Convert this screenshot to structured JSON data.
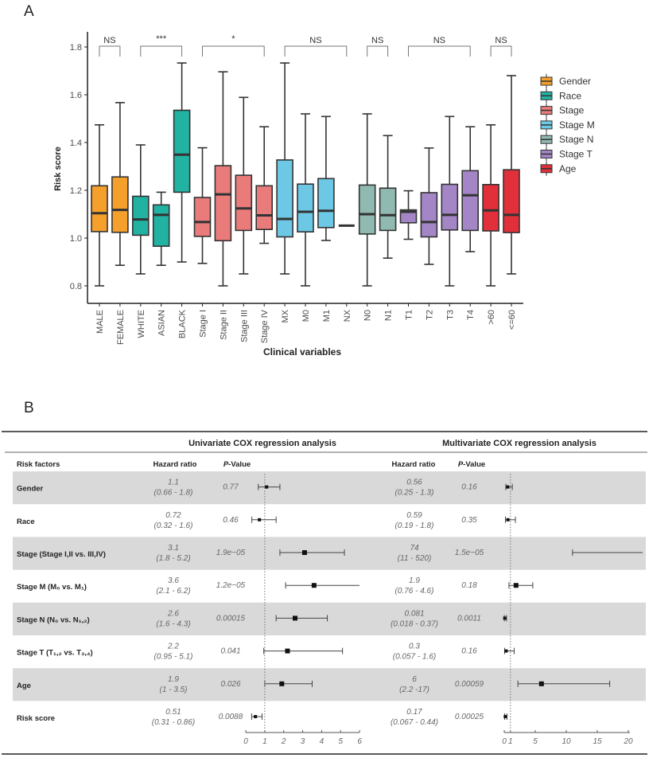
{
  "panel_a_label": "A",
  "panel_b_label": "B",
  "colors": {
    "Gender": "#F5A02C",
    "Race": "#22B2A2",
    "Stage": "#E97B7B",
    "Stage M": "#6DC8E6",
    "Stage N": "#90BAB1",
    "Stage T": "#A486C6",
    "Age": "#E2303B"
  },
  "chart_data": [
    {
      "type": "box",
      "title": "",
      "xlabel": "Clinical variables",
      "ylabel": "Risk score",
      "ylim": [
        0.73,
        1.83
      ],
      "yticks": [
        "0.8",
        "1.0",
        "1.2",
        "1.4",
        "1.6",
        "1.8"
      ],
      "legend": {
        "placement": "right",
        "entries": [
          "Gender",
          "Race",
          "Stage",
          "Stage M",
          "Stage N",
          "Stage T",
          "Age"
        ]
      },
      "boxes": [
        {
          "category": "MALE",
          "group": "Gender",
          "min": 0.8,
          "q1": 1.027,
          "median": 1.104,
          "q3": 1.219,
          "max": 1.474
        },
        {
          "category": "FEMALE",
          "group": "Gender",
          "min": 0.886,
          "q1": 1.024,
          "median": 1.118,
          "q3": 1.256,
          "max": 1.567
        },
        {
          "category": "WHITE",
          "group": "Race",
          "min": 0.85,
          "q1": 1.012,
          "median": 1.078,
          "q3": 1.175,
          "max": 1.39
        },
        {
          "category": "ASIAN",
          "group": "Race",
          "min": 0.886,
          "q1": 0.966,
          "median": 1.097,
          "q3": 1.139,
          "max": 1.192
        },
        {
          "category": "BLACK",
          "group": "Race",
          "min": 0.9,
          "q1": 1.192,
          "median": 1.349,
          "q3": 1.535,
          "max": 1.733
        },
        {
          "category": "Stage I",
          "group": "Stage",
          "min": 0.894,
          "q1": 1.007,
          "median": 1.067,
          "q3": 1.17,
          "max": 1.378
        },
        {
          "category": "Stage II",
          "group": "Stage",
          "min": 0.8,
          "q1": 0.989,
          "median": 1.183,
          "q3": 1.303,
          "max": 1.696
        },
        {
          "category": "Stage III",
          "group": "Stage",
          "min": 0.85,
          "q1": 1.032,
          "median": 1.124,
          "q3": 1.263,
          "max": 1.589
        },
        {
          "category": "Stage IV",
          "group": "Stage",
          "min": 0.978,
          "q1": 1.036,
          "median": 1.095,
          "q3": 1.219,
          "max": 1.466
        },
        {
          "category": "MX",
          "group": "Stage M",
          "min": 0.85,
          "q1": 1.005,
          "median": 1.08,
          "q3": 1.327,
          "max": 1.733
        },
        {
          "category": "M0",
          "group": "Stage M",
          "min": 0.8,
          "q1": 1.026,
          "median": 1.11,
          "q3": 1.226,
          "max": 1.52
        },
        {
          "category": "M1",
          "group": "Stage M",
          "min": 0.99,
          "q1": 1.044,
          "median": 1.114,
          "q3": 1.249,
          "max": 1.509
        },
        {
          "category": "NX",
          "group": "Stage M",
          "min": 1.052,
          "q1": 1.052,
          "median": 1.052,
          "q3": 1.052,
          "max": 1.052
        },
        {
          "category": "N0",
          "group": "Stage N",
          "min": 0.8,
          "q1": 1.017,
          "median": 1.1,
          "q3": 1.222,
          "max": 1.52
        },
        {
          "category": "N1",
          "group": "Stage N",
          "min": 0.916,
          "q1": 1.032,
          "median": 1.096,
          "q3": 1.209,
          "max": 1.429
        },
        {
          "category": "T1",
          "group": "Stage T",
          "min": 0.995,
          "q1": 1.064,
          "median": 1.11,
          "q3": 1.118,
          "max": 1.198
        },
        {
          "category": "T2",
          "group": "Stage T",
          "min": 0.89,
          "q1": 1.005,
          "median": 1.067,
          "q3": 1.19,
          "max": 1.377
        },
        {
          "category": "T3",
          "group": "Stage T",
          "min": 0.8,
          "q1": 1.034,
          "median": 1.097,
          "q3": 1.225,
          "max": 1.509
        },
        {
          "category": "T4",
          "group": "Stage T",
          "min": 0.943,
          "q1": 1.032,
          "median": 1.179,
          "q3": 1.282,
          "max": 1.466
        },
        {
          "category": ">60",
          "group": "Age",
          "min": 0.8,
          "q1": 1.03,
          "median": 1.116,
          "q3": 1.224,
          "max": 1.474
        },
        {
          "category": "<=60",
          "group": "Age",
          "min": 0.85,
          "q1": 1.023,
          "median": 1.097,
          "q3": 1.286,
          "max": 1.68
        }
      ],
      "annotations": [
        {
          "from": "MALE",
          "to": "FEMALE",
          "text": "NS"
        },
        {
          "from": "WHITE",
          "to": "BLACK",
          "text": "***"
        },
        {
          "from": "Stage I",
          "to": "Stage IV",
          "text": "*"
        },
        {
          "from": "MX",
          "to": "NX",
          "text": "NS"
        },
        {
          "from": "N0",
          "to": "N1",
          "text": "NS"
        },
        {
          "from": "T1",
          "to": "T4",
          "text": "NS"
        },
        {
          "from": ">60",
          "to": "<=60",
          "text": "NS"
        }
      ]
    },
    {
      "type": "forest",
      "uni_title": "Univariate COX regression analysis",
      "multi_title": "Multivariate  COX regression analysis",
      "col_headers": {
        "factor": "Risk factors",
        "hr": "Hazard ratio",
        "p_italic": "P",
        "p_rest": "-Value"
      },
      "uni_axis": {
        "range": [
          0,
          6
        ],
        "ticks": [
          "0",
          "1",
          "2",
          "3",
          "4",
          "5",
          "6"
        ],
        "ref": 1
      },
      "multi_axis": {
        "range": [
          0,
          20
        ],
        "ticks": [
          "0",
          "1",
          "5",
          "10",
          "15",
          "20"
        ],
        "ref": 1
      },
      "rows": [
        {
          "factor": "Gender",
          "uni": {
            "hr": "1.1",
            "ci": "(0.66 - 1.8)",
            "p": "0.77",
            "est": 1.1,
            "lo": 0.66,
            "hi": 1.8
          },
          "multi": {
            "hr": "0.56",
            "ci": "(0.25 - 1.3)",
            "p": "0.16",
            "est": 0.56,
            "lo": 0.25,
            "hi": 1.3
          }
        },
        {
          "factor": "Race",
          "uni": {
            "hr": "0.72",
            "ci": "(0.32 - 1.6)",
            "p": "0.46",
            "est": 0.72,
            "lo": 0.32,
            "hi": 1.6
          },
          "multi": {
            "hr": "0.59",
            "ci": "(0.19 - 1.8)",
            "p": "0.35",
            "est": 0.59,
            "lo": 0.19,
            "hi": 1.8
          }
        },
        {
          "factor": "Stage (Stage I,II vs. III,IV)",
          "uni": {
            "hr": "3.1",
            "ci": "(1.8 - 5.2)",
            "p": "1.9e−05",
            "est": 3.1,
            "lo": 1.8,
            "hi": 5.2
          },
          "multi": {
            "hr": "74",
            "ci": "(11 - 520)",
            "p": "1.5e−05",
            "est": 74,
            "lo": 11,
            "hi": 520
          }
        },
        {
          "factor": "Stage M (M₀ vs. M₁)",
          "uni": {
            "hr": "3.6",
            "ci": "(2.1 - 6.2)",
            "p": "1.2e−05",
            "est": 3.6,
            "lo": 2.1,
            "hi": 6.2
          },
          "multi": {
            "hr": "1.9",
            "ci": "(0.76 - 4.6)",
            "p": "0.18",
            "est": 1.9,
            "lo": 0.76,
            "hi": 4.6
          }
        },
        {
          "factor": "Stage N (N₀ vs. N₁,₂)",
          "uni": {
            "hr": "2.6",
            "ci": "(1.6 - 4.3)",
            "p": "0.00015",
            "est": 2.6,
            "lo": 1.6,
            "hi": 4.3
          },
          "multi": {
            "hr": "0.081",
            "ci": "(0.018 - 0.37)",
            "p": "0.0011",
            "est": 0.081,
            "lo": 0.018,
            "hi": 0.37
          }
        },
        {
          "factor": "Stage T (T₁,₂ vs. T₃,₄)",
          "uni": {
            "hr": "2.2",
            "ci": "(0.95 - 5.1)",
            "p": "0.041",
            "est": 2.2,
            "lo": 0.95,
            "hi": 5.1
          },
          "multi": {
            "hr": "0.3",
            "ci": "(0.057 - 1.6)",
            "p": "0.16",
            "est": 0.3,
            "lo": 0.057,
            "hi": 1.6
          }
        },
        {
          "factor": "Age",
          "uni": {
            "hr": "1.9",
            "ci": "(1 - 3.5)",
            "p": "0.026",
            "est": 1.9,
            "lo": 1,
            "hi": 3.5
          },
          "multi": {
            "hr": "6",
            "ci": "(2.2 -17)",
            "p": "0.00059",
            "est": 6,
            "lo": 2.2,
            "hi": 17
          }
        },
        {
          "factor": "Risk  score",
          "uni": {
            "hr": "0.51",
            "ci": "(0.31 - 0.86)",
            "p": "0.0088",
            "est": 0.51,
            "lo": 0.31,
            "hi": 0.86
          },
          "multi": {
            "hr": "0.17",
            "ci": "(0.067 - 0.44)",
            "p": "0.00025",
            "est": 0.17,
            "lo": 0.067,
            "hi": 0.44
          }
        }
      ]
    }
  ]
}
